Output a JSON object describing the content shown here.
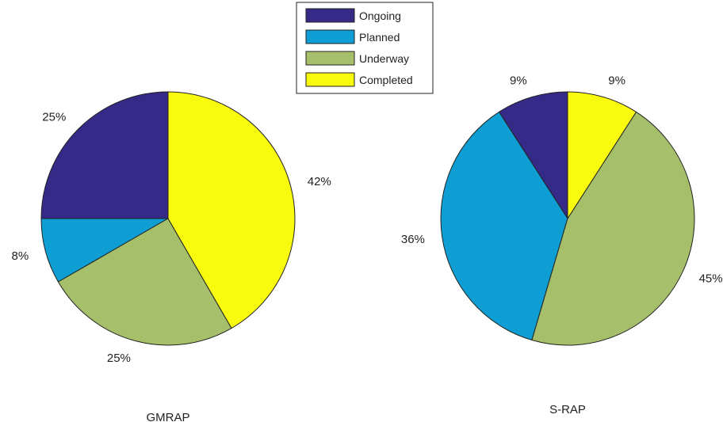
{
  "legend": {
    "entries": [
      {
        "label": "Ongoing",
        "color": "#352a87"
      },
      {
        "label": "Planned",
        "color": "#0f9ed3"
      },
      {
        "label": "Underway",
        "color": "#a5bf6b"
      },
      {
        "label": "Completed",
        "color": "#f9fb0e"
      }
    ]
  },
  "chart_data": [
    {
      "type": "pie",
      "title": "GMRAP",
      "categories": [
        "Ongoing",
        "Planned",
        "Underway",
        "Completed"
      ],
      "values": [
        3,
        1,
        3,
        5
      ],
      "labels": [
        "25%",
        "8%",
        "25%",
        "42%"
      ],
      "legend": "top-center"
    },
    {
      "type": "pie",
      "title": "S-RAP",
      "categories": [
        "Ongoing",
        "Planned",
        "Underway",
        "Completed"
      ],
      "values": [
        1,
        4,
        5,
        1
      ],
      "labels": [
        "9%",
        "36%",
        "45%",
        "9%"
      ],
      "legend": "top-center"
    }
  ]
}
